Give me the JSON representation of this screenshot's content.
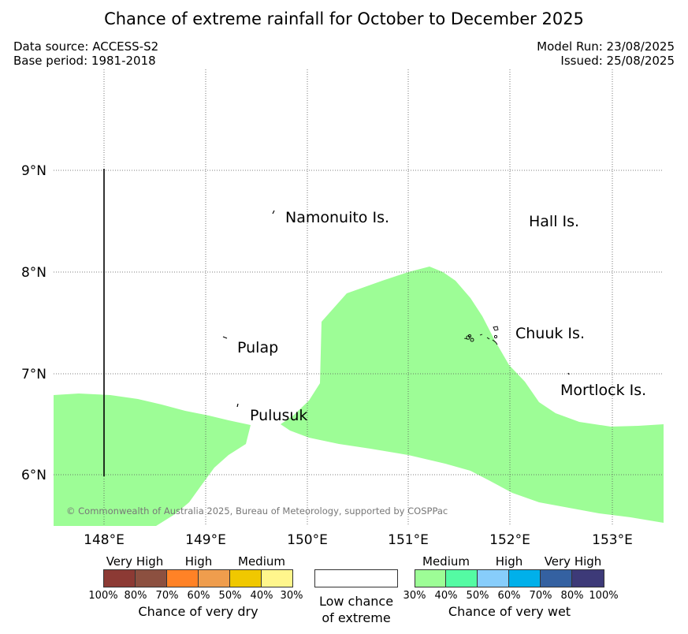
{
  "header": {
    "title": "Chance of extreme rainfall for October to December 2025",
    "data_source": "Data source: ACCESS-S2",
    "base_period": "Base period: 1981-2018",
    "model_run": "Model Run: 23/08/2025",
    "issued": "Issued: 25/08/2025"
  },
  "map": {
    "lon_ticks": [
      "148°E",
      "149°E",
      "150°E",
      "151°E",
      "152°E",
      "153°E"
    ],
    "lat_ticks": [
      "9°N",
      "8°N",
      "7°N",
      "6°N"
    ],
    "places": [
      "Namonuito Is.",
      "Hall Is.",
      "Pulap",
      "Chuuk Is.",
      "Mortlock Is.",
      "Pulusuk"
    ],
    "copyright": "© Commonwealth of Australia 2025, Bureau of Meteorology, supported by COSPPac",
    "wet_zone_color": "#9dfd96"
  },
  "legend": {
    "dry": {
      "headers": [
        "Very High",
        "High",
        "Medium"
      ],
      "percents": [
        "100%",
        "80%",
        "70%",
        "60%",
        "50%",
        "40%",
        "30%"
      ],
      "colors": [
        "#8c3a34",
        "#8c5040",
        "#ff8226",
        "#ef9d4d",
        "#f0c800",
        "#fff68c"
      ],
      "caption": "Chance of very dry"
    },
    "neutral": {
      "caption_line1": "Low chance",
      "caption_line2": "of extreme"
    },
    "wet": {
      "headers": [
        "Medium",
        "High",
        "Very High"
      ],
      "percents": [
        "30%",
        "40%",
        "50%",
        "60%",
        "70%",
        "80%",
        "100%"
      ],
      "colors": [
        "#9dfd96",
        "#54fba3",
        "#87cdfb",
        "#00b0ea",
        "#3461a1",
        "#3d3a78"
      ],
      "caption": "Chance of very wet"
    }
  }
}
